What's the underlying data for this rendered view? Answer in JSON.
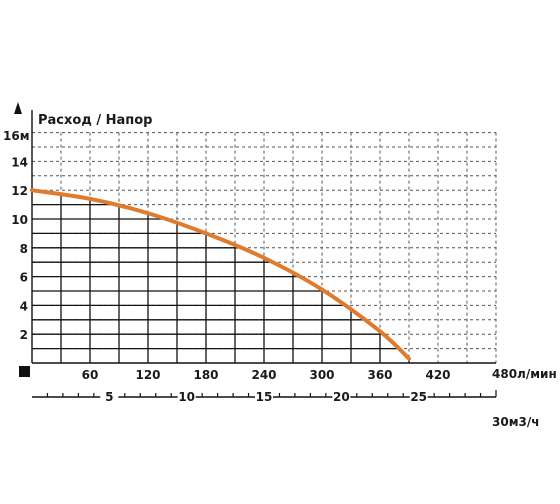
{
  "chart_data": {
    "type": "line",
    "title": "Расход / Напор",
    "y_axis": {
      "unit_label": "16м",
      "range": [
        0,
        16
      ],
      "ticks": [
        "2",
        "4",
        "6",
        "8",
        "10",
        "12",
        "14"
      ]
    },
    "x_axis_primary": {
      "unit": "л/мин",
      "range": [
        0,
        480
      ],
      "ticks": [
        "60",
        "120",
        "180",
        "240",
        "300",
        "360",
        "420"
      ],
      "last_tick_label": "480л/мин"
    },
    "x_axis_secondary": {
      "unit": "м3/ч",
      "range": [
        0,
        30
      ],
      "ticks": [
        "5",
        "10",
        "15",
        "20",
        "25"
      ],
      "last_tick_label": "30м3/ч"
    },
    "series": [
      {
        "color": "#e07a2c",
        "x": [
          0,
          60,
          120,
          180,
          240,
          300,
          360,
          390
        ],
        "y": [
          12.0,
          11.4,
          10.4,
          9.0,
          7.3,
          5.1,
          2.2,
          0.3
        ]
      }
    ],
    "grid": true,
    "grid_dashed_region": "upper-right",
    "colors": {
      "curve": "#e07a2c",
      "grid": "#111111",
      "dashed_grid": "#555555"
    }
  }
}
